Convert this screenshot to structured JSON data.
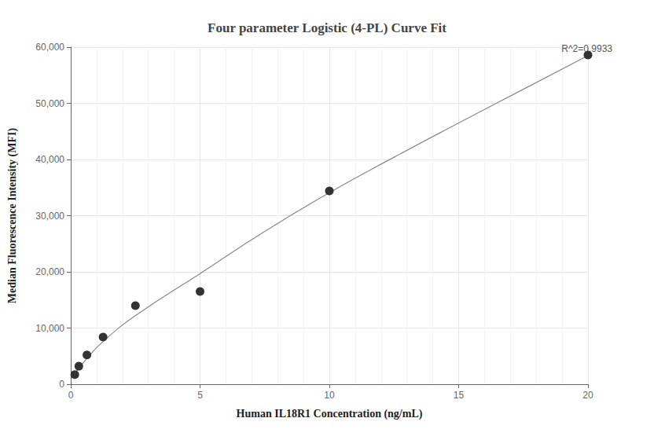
{
  "chart_data": {
    "type": "scatter",
    "title": "Four parameter Logistic (4-PL) Curve Fit",
    "x_label": "Human IL18R1 Concentration (ng/mL)",
    "y_label": "Median Fluorescence Intensity (MFI)",
    "annotation": "R^2=0.9933",
    "series": [
      {
        "type": "line",
        "color": "#888888",
        "line_style": "solid",
        "x": [
          0.156,
          0.3125,
          0.625,
          1.25,
          2.5,
          5,
          7.5,
          10,
          12.5,
          15,
          17.5,
          20
        ],
        "values": [
          1900,
          2800,
          4600,
          7600,
          12200,
          19700,
          27200,
          34100,
          40400,
          46500,
          52500,
          58500
        ]
      },
      {
        "type": "scatter",
        "color": "#333333",
        "marker": "circle",
        "x": [
          0.156,
          0.3125,
          0.625,
          1.25,
          2.5,
          5,
          10,
          20
        ],
        "values": [
          1700,
          3200,
          5200,
          8400,
          14000,
          16500,
          34400,
          58600
        ]
      }
    ],
    "xlim": [
      0,
      20
    ],
    "xticks": [
      0,
      5,
      10,
      15,
      20
    ],
    "ylim": [
      0,
      60000
    ],
    "yticks": [
      0,
      {
        "value": 10000,
        "label": "10,000"
      },
      {
        "value": 20000,
        "label": "20,000"
      },
      {
        "value": 30000,
        "label": "30,000"
      },
      {
        "value": 40000,
        "label": "40,000"
      },
      {
        "value": 50000,
        "label": "50,000"
      },
      {
        "value": 60000,
        "label": "60,000"
      }
    ],
    "grid": true
  }
}
